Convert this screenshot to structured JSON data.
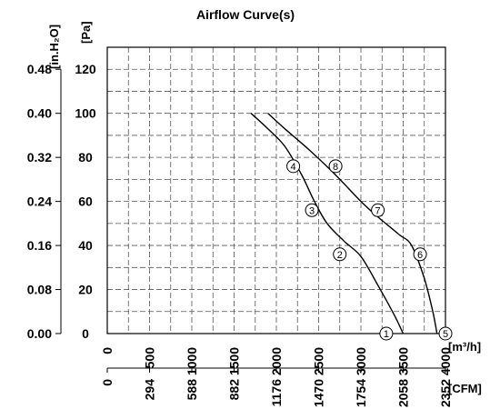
{
  "chart_data": {
    "type": "line",
    "title": "Airflow Curve(s)",
    "x_primary": {
      "unit_label": "[m³/h]",
      "range": [
        0,
        4000
      ],
      "ticks": [
        "0",
        "500",
        "1000",
        "1500",
        "2000",
        "2500",
        "3000",
        "3500",
        "4000"
      ]
    },
    "x_secondary": {
      "unit_label": "[CFM]",
      "ticks": [
        "0",
        "294",
        "588",
        "882",
        "1176",
        "1470",
        "1754",
        "2058",
        "2352"
      ]
    },
    "y_primary": {
      "unit_label": "[Pa]",
      "range": [
        0,
        120
      ],
      "ticks": [
        "0",
        "20",
        "40",
        "60",
        "80",
        "100",
        "120"
      ]
    },
    "y_secondary": {
      "unit_label": "[in.H₂O]",
      "ticks": [
        "0.00",
        "0.08",
        "0.16",
        "0.24",
        "0.32",
        "0.40",
        "0.48"
      ]
    },
    "grid": true,
    "series": [
      {
        "points": [
          [
            1700,
            100
          ],
          [
            1900,
            93
          ],
          [
            2100,
            85
          ],
          [
            2300,
            72
          ],
          [
            2450,
            60
          ],
          [
            2600,
            50
          ],
          [
            2800,
            42
          ],
          [
            3000,
            35
          ],
          [
            3200,
            22
          ],
          [
            3400,
            8
          ],
          [
            3500,
            0
          ]
        ]
      },
      {
        "points": [
          [
            1900,
            100
          ],
          [
            2100,
            93
          ],
          [
            2400,
            83
          ],
          [
            2700,
            72
          ],
          [
            3000,
            60
          ],
          [
            3200,
            53
          ],
          [
            3450,
            45
          ],
          [
            3600,
            40
          ],
          [
            3750,
            25
          ],
          [
            3850,
            10
          ],
          [
            3900,
            0
          ]
        ]
      }
    ],
    "markers": [
      {
        "label": "1",
        "x": 3300,
        "y": 0
      },
      {
        "label": "2",
        "x": 2750,
        "y": 36
      },
      {
        "label": "3",
        "x": 2420,
        "y": 56
      },
      {
        "label": "4",
        "x": 2200,
        "y": 76
      },
      {
        "label": "5",
        "x": 4000,
        "y": 0
      },
      {
        "label": "6",
        "x": 3700,
        "y": 36
      },
      {
        "label": "7",
        "x": 3200,
        "y": 56
      },
      {
        "label": "8",
        "x": 2700,
        "y": 76
      }
    ]
  }
}
